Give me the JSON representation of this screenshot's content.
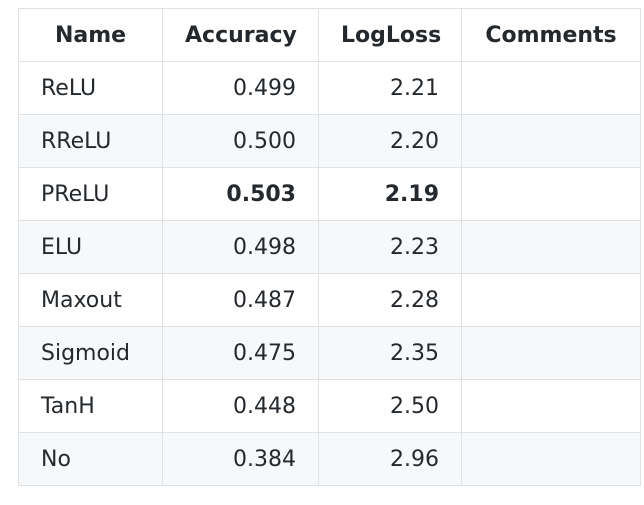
{
  "table": {
    "headers": [
      "Name",
      "Accuracy",
      "LogLoss",
      "Comments"
    ],
    "rows": [
      {
        "name": "ReLU",
        "accuracy": "0.499",
        "logloss": "2.21",
        "comments": "",
        "best": false
      },
      {
        "name": "RReLU",
        "accuracy": "0.500",
        "logloss": "2.20",
        "comments": "",
        "best": false
      },
      {
        "name": "PReLU",
        "accuracy": "0.503",
        "logloss": "2.19",
        "comments": "",
        "best": true
      },
      {
        "name": "ELU",
        "accuracy": "0.498",
        "logloss": "2.23",
        "comments": "",
        "best": false
      },
      {
        "name": "Maxout",
        "accuracy": "0.487",
        "logloss": "2.28",
        "comments": "",
        "best": false
      },
      {
        "name": "Sigmoid",
        "accuracy": "0.475",
        "logloss": "2.35",
        "comments": "",
        "best": false
      },
      {
        "name": "TanH",
        "accuracy": "0.448",
        "logloss": "2.50",
        "comments": "",
        "best": false
      },
      {
        "name": "No",
        "accuracy": "0.384",
        "logloss": "2.96",
        "comments": "",
        "best": false
      }
    ]
  }
}
